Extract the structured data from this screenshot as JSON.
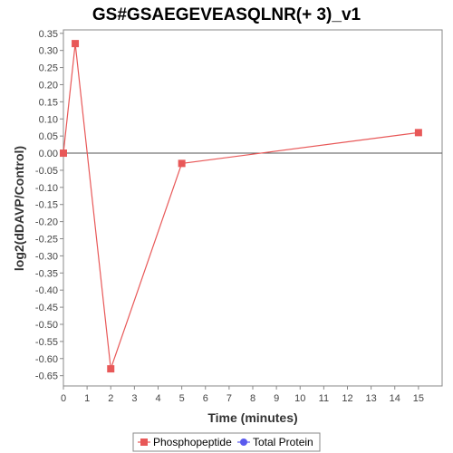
{
  "chart_data": {
    "type": "line",
    "title": "GS#GSAEGEVEASQLNR(+ 3)_v1",
    "xlabel": "Time (minutes)",
    "ylabel": "log2(dDAVP/Control)",
    "xlim": [
      0,
      16
    ],
    "ylim": [
      -0.68,
      0.36
    ],
    "xticks": [
      0,
      1,
      2,
      3,
      4,
      5,
      6,
      7,
      8,
      9,
      10,
      11,
      12,
      13,
      14,
      15
    ],
    "yticks": [
      0.35,
      0.3,
      0.25,
      0.2,
      0.15,
      0.1,
      0.05,
      0.0,
      -0.05,
      -0.1,
      -0.15,
      -0.2,
      -0.25,
      -0.3,
      -0.35,
      -0.4,
      -0.45,
      -0.5,
      -0.55,
      -0.6,
      -0.65
    ],
    "ytick_labels": [
      "0.35",
      "0.30",
      "0.25",
      "0.20",
      "0.15",
      "0.10",
      "0.05",
      "0.00",
      "-0.05",
      "-0.10",
      "-0.15",
      "-0.20",
      "-0.25",
      "-0.30",
      "-0.35",
      "-0.40",
      "-0.45",
      "-0.50",
      "-0.55",
      "-0.60",
      "-0.65"
    ],
    "zero_line": true,
    "grid": false,
    "legend_position": "bottom",
    "series": [
      {
        "name": "Phosphopeptide",
        "color": "#e85858",
        "marker": "square",
        "x": [
          0,
          0.5,
          2,
          5,
          15
        ],
        "y": [
          0.0,
          0.32,
          -0.63,
          -0.03,
          0.06
        ]
      },
      {
        "name": "Total Protein",
        "color": "#5a5aee",
        "marker": "circle",
        "x": [],
        "y": []
      }
    ]
  }
}
